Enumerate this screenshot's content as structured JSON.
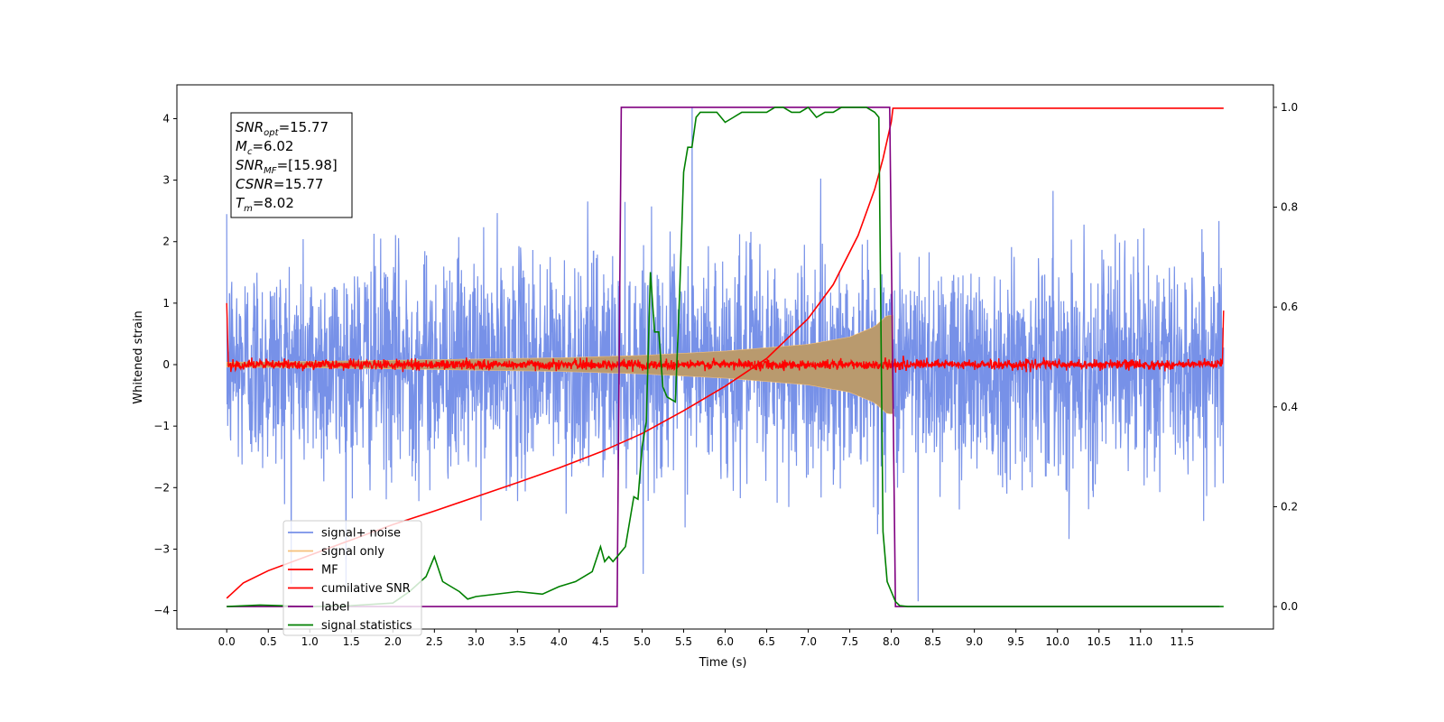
{
  "chart_data": {
    "type": "line",
    "xlabel": "Time (s)",
    "ylabel": "Whitened strain",
    "xlim": [
      -0.6,
      12.6
    ],
    "ylim": [
      -4.3,
      4.55
    ],
    "y2lim": [
      -0.045,
      1.045
    ],
    "x_ticks": [
      0.0,
      0.5,
      1.0,
      1.5,
      2.0,
      2.5,
      3.0,
      3.5,
      4.0,
      4.5,
      5.0,
      5.5,
      6.0,
      6.5,
      7.0,
      7.5,
      8.0,
      8.5,
      9.0,
      9.5,
      10.0,
      10.5,
      11.0,
      11.5
    ],
    "x_tick_labels": [
      "0.0",
      "0.5",
      "1.0",
      "1.5",
      "2.0",
      "2.5",
      "3.0",
      "3.5",
      "4.0",
      "4.5",
      "5.0",
      "5.5",
      "6.0",
      "6.5",
      "7.0",
      "7.5",
      "8.0",
      "8.5",
      "9.0",
      "9.5",
      "10.0",
      "10.5",
      "11.0",
      "11.5"
    ],
    "y_ticks": [
      -4,
      -3,
      -2,
      -1,
      0,
      1,
      2,
      3,
      4
    ],
    "y_tick_labels": [
      "−4",
      "−3",
      "−2",
      "−1",
      "0",
      "1",
      "2",
      "3",
      "4"
    ],
    "y2_ticks": [
      0.0,
      0.2,
      0.4,
      0.6,
      0.8,
      1.0
    ],
    "y2_tick_labels": [
      "0.0",
      "0.2",
      "0.4",
      "0.6",
      "0.8",
      "1.0"
    ],
    "legend_position": "lower-left",
    "annotation": [
      {
        "main": "SNR",
        "sub": "opt",
        "value": "=15.77"
      },
      {
        "main": "M",
        "sub": "c",
        "value": "=6.02"
      },
      {
        "main": "SNR",
        "sub": "MF",
        "value": "=[15.98]"
      },
      {
        "main": "CSNR",
        "sub": "",
        "value": "=15.77"
      },
      {
        "main": "T",
        "sub": "m",
        "value": "=8.02"
      }
    ],
    "series": [
      {
        "name": "signal+ noise",
        "color": "#7791e8",
        "kind": "noise",
        "axis": "left",
        "x_range": [
          0.0,
          12.0
        ],
        "typical_amplitude": 2.1,
        "max": 4.18,
        "min": -3.85
      },
      {
        "name": "signal only",
        "color": "#f5c07a",
        "kind": "chirp-envelope",
        "axis": "left",
        "x_range": [
          0.0,
          8.02
        ],
        "envelope_x": [
          0.0,
          1.0,
          2.0,
          3.0,
          4.0,
          5.0,
          6.0,
          7.0,
          7.5,
          7.8,
          7.95,
          8.02
        ],
        "envelope_y": [
          0.04,
          0.05,
          0.07,
          0.09,
          0.11,
          0.15,
          0.22,
          0.33,
          0.45,
          0.62,
          0.8,
          0.8
        ]
      },
      {
        "name": "MF",
        "color": "#ff0000",
        "kind": "noise",
        "axis": "left",
        "x_range": [
          0.0,
          12.0
        ],
        "typical_amplitude": 0.08,
        "edge_values": [
          1.0,
          0.88
        ]
      },
      {
        "name": "cumilative SNR",
        "color": "#ff0000",
        "kind": "line",
        "axis": "left",
        "x": [
          0.0,
          0.2,
          0.5,
          1.0,
          1.5,
          2.0,
          2.5,
          3.0,
          3.5,
          4.0,
          4.5,
          5.0,
          5.5,
          6.0,
          6.5,
          7.0,
          7.3,
          7.6,
          7.8,
          7.9,
          8.0,
          8.02,
          12.0
        ],
        "y": [
          -3.8,
          -3.55,
          -3.35,
          -3.1,
          -2.85,
          -2.6,
          -2.38,
          -2.15,
          -1.92,
          -1.68,
          -1.42,
          -1.12,
          -0.75,
          -0.35,
          0.1,
          0.75,
          1.3,
          2.1,
          2.85,
          3.35,
          3.95,
          4.17,
          4.17
        ]
      },
      {
        "name": "label",
        "color": "#800080",
        "kind": "line",
        "axis": "right",
        "x": [
          0.0,
          4.7,
          4.75,
          7.98,
          8.05,
          11.95
        ],
        "y": [
          0.0,
          0.0,
          1.0,
          1.0,
          0.0,
          0.0
        ]
      },
      {
        "name": "signal statistics",
        "color": "#008000",
        "kind": "line",
        "axis": "right",
        "x": [
          0.0,
          0.4,
          1.0,
          1.5,
          2.0,
          2.2,
          2.4,
          2.5,
          2.6,
          2.7,
          2.8,
          2.9,
          3.0,
          3.5,
          3.8,
          4.0,
          4.2,
          4.4,
          4.5,
          4.55,
          4.6,
          4.65,
          4.7,
          4.8,
          4.9,
          4.95,
          5.0,
          5.05,
          5.1,
          5.15,
          5.2,
          5.25,
          5.3,
          5.4,
          5.45,
          5.5,
          5.55,
          5.6,
          5.65,
          5.7,
          5.75,
          5.8,
          5.9,
          6.0,
          6.1,
          6.2,
          6.3,
          6.4,
          6.5,
          6.6,
          6.7,
          6.8,
          6.9,
          7.0,
          7.1,
          7.2,
          7.3,
          7.4,
          7.5,
          7.6,
          7.7,
          7.8,
          7.85,
          7.9,
          7.95,
          8.0,
          8.05,
          8.1,
          8.2,
          8.5,
          12.0
        ],
        "y": [
          0.0,
          0.003,
          0.0,
          0.002,
          0.007,
          0.03,
          0.06,
          0.1,
          0.05,
          0.04,
          0.03,
          0.015,
          0.02,
          0.03,
          0.025,
          0.04,
          0.05,
          0.07,
          0.12,
          0.09,
          0.1,
          0.09,
          0.1,
          0.12,
          0.22,
          0.215,
          0.32,
          0.37,
          0.67,
          0.55,
          0.55,
          0.44,
          0.42,
          0.41,
          0.62,
          0.87,
          0.92,
          0.92,
          0.98,
          0.99,
          0.99,
          0.99,
          0.99,
          0.97,
          0.98,
          0.99,
          0.99,
          0.99,
          0.99,
          1.0,
          1.0,
          0.99,
          0.99,
          1.0,
          0.98,
          0.99,
          0.99,
          1.0,
          1.0,
          1.0,
          1.0,
          0.99,
          0.98,
          0.15,
          0.05,
          0.03,
          0.01,
          0.002,
          0.0,
          0.0,
          0.0
        ]
      }
    ]
  }
}
